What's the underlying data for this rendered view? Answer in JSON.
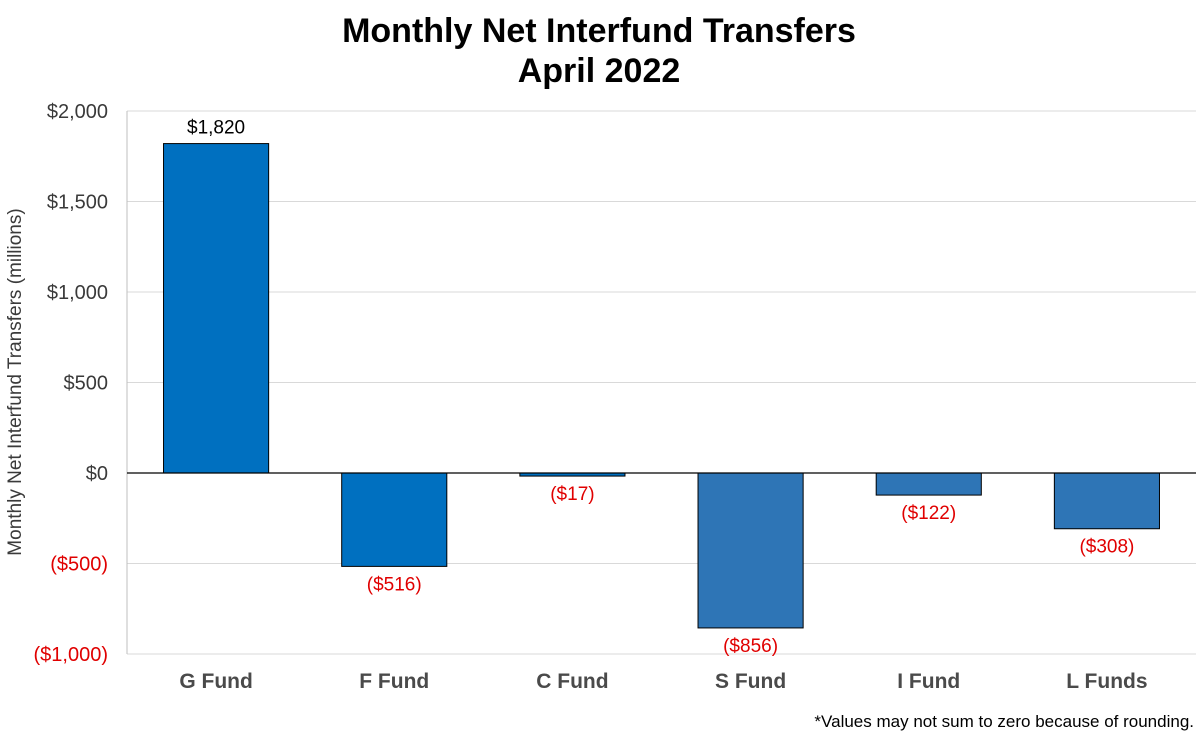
{
  "chart_data": {
    "type": "bar",
    "title": "Monthly Net Interfund Transfers",
    "subtitle": "April 2022",
    "xlabel": "",
    "ylabel": "Monthly Net Interfund Transfers (millions)",
    "ylim": [
      -1000,
      2000
    ],
    "yticks": [
      2000,
      1500,
      1000,
      500,
      0,
      -500,
      -1000
    ],
    "ytick_labels": [
      "$2,000",
      "$1,500",
      "$1,000",
      "$500",
      "$0",
      "($500)",
      "($1,000)"
    ],
    "grid": true,
    "categories": [
      "G Fund",
      "F Fund",
      "C Fund",
      "S Fund",
      "I Fund",
      "L Funds"
    ],
    "values": [
      1820,
      -516,
      -17,
      -856,
      -122,
      -308
    ],
    "data_labels": [
      "$1,820",
      "($516)",
      "($17)",
      "($856)",
      "($122)",
      "($308)"
    ],
    "colors": [
      "#0070c0",
      "#0070c0",
      "#0070c0",
      "#2e75b6",
      "#2e75b6",
      "#2e75b6"
    ],
    "negative_label_color": "#e00000",
    "footnote": "*Values may not sum to zero because of rounding."
  }
}
